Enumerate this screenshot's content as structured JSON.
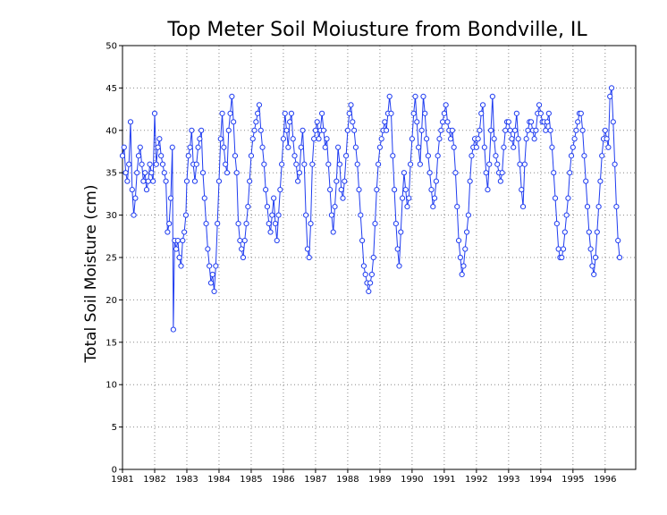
{
  "chart_data": {
    "type": "line",
    "title": "Top Meter Soil Moiusture from Bondville, IL",
    "xlabel": "",
    "ylabel": "Total Soil Moisture (cm)",
    "xlim": [
      1981.0,
      1996.95
    ],
    "ylim": [
      0,
      50
    ],
    "grid": true,
    "x_ticks": [
      "1981",
      "1982",
      "1983",
      "1984",
      "1985",
      "1986",
      "1987",
      "1988",
      "1989",
      "1990",
      "1991",
      "1992",
      "1993",
      "1994",
      "1995",
      "1996"
    ],
    "y_ticks": [
      "0",
      "5",
      "10",
      "15",
      "20",
      "25",
      "30",
      "35",
      "40",
      "45",
      "50"
    ],
    "series": [
      {
        "name": "",
        "color": "#1f3cf0",
        "marker": "open-circle",
        "points": [
          [
            1981.0,
            37
          ],
          [
            1981.05,
            38
          ],
          [
            1981.1,
            35
          ],
          [
            1981.15,
            34
          ],
          [
            1981.2,
            36
          ],
          [
            1981.25,
            41
          ],
          [
            1981.3,
            33
          ],
          [
            1981.35,
            30
          ],
          [
            1981.4,
            32
          ],
          [
            1981.45,
            35
          ],
          [
            1981.5,
            37
          ],
          [
            1981.55,
            38
          ],
          [
            1981.6,
            36
          ],
          [
            1981.65,
            34
          ],
          [
            1981.7,
            35
          ],
          [
            1981.75,
            33
          ],
          [
            1981.8,
            34
          ],
          [
            1981.85,
            36
          ],
          [
            1981.9,
            35
          ],
          [
            1981.95,
            34
          ],
          [
            1982.0,
            42
          ],
          [
            1982.05,
            36
          ],
          [
            1982.1,
            38
          ],
          [
            1982.15,
            39
          ],
          [
            1982.2,
            37
          ],
          [
            1982.25,
            36
          ],
          [
            1982.3,
            35
          ],
          [
            1982.35,
            34
          ],
          [
            1982.4,
            28
          ],
          [
            1982.45,
            29
          ],
          [
            1982.5,
            32
          ],
          [
            1982.55,
            38
          ],
          [
            1982.58,
            16.5
          ],
          [
            1982.62,
            27
          ],
          [
            1982.67,
            26
          ],
          [
            1982.72,
            27
          ],
          [
            1982.77,
            25
          ],
          [
            1982.82,
            24
          ],
          [
            1982.87,
            27
          ],
          [
            1982.92,
            28
          ],
          [
            1982.97,
            30
          ],
          [
            1983.0,
            34
          ],
          [
            1983.05,
            37
          ],
          [
            1983.1,
            38
          ],
          [
            1983.15,
            40
          ],
          [
            1983.2,
            36
          ],
          [
            1983.25,
            34
          ],
          [
            1983.3,
            36
          ],
          [
            1983.35,
            38
          ],
          [
            1983.4,
            39
          ],
          [
            1983.45,
            40
          ],
          [
            1983.5,
            35
          ],
          [
            1983.55,
            32
          ],
          [
            1983.6,
            29
          ],
          [
            1983.65,
            26
          ],
          [
            1983.7,
            24
          ],
          [
            1983.75,
            22
          ],
          [
            1983.8,
            23
          ],
          [
            1983.85,
            21
          ],
          [
            1983.9,
            24
          ],
          [
            1983.95,
            29
          ],
          [
            1984.0,
            34
          ],
          [
            1984.05,
            39
          ],
          [
            1984.1,
            42
          ],
          [
            1984.15,
            38
          ],
          [
            1984.2,
            36
          ],
          [
            1984.25,
            35
          ],
          [
            1984.3,
            40
          ],
          [
            1984.35,
            42
          ],
          [
            1984.4,
            44
          ],
          [
            1984.45,
            41
          ],
          [
            1984.5,
            37
          ],
          [
            1984.55,
            35
          ],
          [
            1984.6,
            29
          ],
          [
            1984.65,
            27
          ],
          [
            1984.7,
            26
          ],
          [
            1984.75,
            25
          ],
          [
            1984.8,
            27
          ],
          [
            1984.85,
            29
          ],
          [
            1984.9,
            31
          ],
          [
            1984.95,
            34
          ],
          [
            1985.0,
            37
          ],
          [
            1985.05,
            39
          ],
          [
            1985.1,
            40
          ],
          [
            1985.15,
            41
          ],
          [
            1985.2,
            42
          ],
          [
            1985.25,
            43
          ],
          [
            1985.3,
            40
          ],
          [
            1985.35,
            38
          ],
          [
            1985.4,
            36
          ],
          [
            1985.45,
            33
          ],
          [
            1985.5,
            31
          ],
          [
            1985.55,
            29
          ],
          [
            1985.6,
            28
          ],
          [
            1985.65,
            30
          ],
          [
            1985.7,
            32
          ],
          [
            1985.75,
            29
          ],
          [
            1985.8,
            27
          ],
          [
            1985.85,
            30
          ],
          [
            1985.9,
            33
          ],
          [
            1985.95,
            36
          ],
          [
            1986.0,
            39
          ],
          [
            1986.05,
            42
          ],
          [
            1986.1,
            40
          ],
          [
            1986.15,
            38
          ],
          [
            1986.2,
            41
          ],
          [
            1986.25,
            42
          ],
          [
            1986.3,
            39
          ],
          [
            1986.35,
            37
          ],
          [
            1986.4,
            36
          ],
          [
            1986.45,
            34
          ],
          [
            1986.5,
            35
          ],
          [
            1986.55,
            38
          ],
          [
            1986.6,
            40
          ],
          [
            1986.65,
            36
          ],
          [
            1986.7,
            30
          ],
          [
            1986.75,
            26
          ],
          [
            1986.8,
            25
          ],
          [
            1986.85,
            29
          ],
          [
            1986.9,
            36
          ],
          [
            1986.95,
            39
          ],
          [
            1987.0,
            40
          ],
          [
            1987.05,
            41
          ],
          [
            1987.1,
            39
          ],
          [
            1987.15,
            40
          ],
          [
            1987.2,
            42
          ],
          [
            1987.25,
            40
          ],
          [
            1987.3,
            38
          ],
          [
            1987.35,
            39
          ],
          [
            1987.4,
            36
          ],
          [
            1987.45,
            33
          ],
          [
            1987.5,
            30
          ],
          [
            1987.55,
            28
          ],
          [
            1987.6,
            31
          ],
          [
            1987.65,
            34
          ],
          [
            1987.7,
            38
          ],
          [
            1987.75,
            36
          ],
          [
            1987.8,
            33
          ],
          [
            1987.85,
            32
          ],
          [
            1987.9,
            34
          ],
          [
            1987.95,
            37
          ],
          [
            1988.0,
            40
          ],
          [
            1988.05,
            42
          ],
          [
            1988.1,
            43
          ],
          [
            1988.15,
            41
          ],
          [
            1988.2,
            40
          ],
          [
            1988.25,
            38
          ],
          [
            1988.3,
            36
          ],
          [
            1988.35,
            33
          ],
          [
            1988.4,
            30
          ],
          [
            1988.45,
            27
          ],
          [
            1988.5,
            24
          ],
          [
            1988.55,
            23
          ],
          [
            1988.6,
            22
          ],
          [
            1988.65,
            21
          ],
          [
            1988.7,
            22
          ],
          [
            1988.75,
            23
          ],
          [
            1988.8,
            25
          ],
          [
            1988.85,
            29
          ],
          [
            1988.9,
            33
          ],
          [
            1988.95,
            36
          ],
          [
            1989.0,
            38
          ],
          [
            1989.05,
            39
          ],
          [
            1989.1,
            40
          ],
          [
            1989.15,
            41
          ],
          [
            1989.2,
            40
          ],
          [
            1989.25,
            42
          ],
          [
            1989.3,
            44
          ],
          [
            1989.35,
            42
          ],
          [
            1989.4,
            37
          ],
          [
            1989.45,
            33
          ],
          [
            1989.5,
            29
          ],
          [
            1989.55,
            26
          ],
          [
            1989.6,
            24
          ],
          [
            1989.65,
            28
          ],
          [
            1989.7,
            32
          ],
          [
            1989.75,
            35
          ],
          [
            1989.8,
            33
          ],
          [
            1989.85,
            31
          ],
          [
            1989.9,
            32
          ],
          [
            1989.95,
            36
          ],
          [
            1990.0,
            39
          ],
          [
            1990.05,
            42
          ],
          [
            1990.1,
            44
          ],
          [
            1990.15,
            41
          ],
          [
            1990.2,
            38
          ],
          [
            1990.25,
            36
          ],
          [
            1990.3,
            40
          ],
          [
            1990.35,
            44
          ],
          [
            1990.4,
            42
          ],
          [
            1990.45,
            39
          ],
          [
            1990.5,
            37
          ],
          [
            1990.55,
            35
          ],
          [
            1990.6,
            33
          ],
          [
            1990.65,
            31
          ],
          [
            1990.7,
            32
          ],
          [
            1990.75,
            34
          ],
          [
            1990.8,
            37
          ],
          [
            1990.85,
            39
          ],
          [
            1990.9,
            40
          ],
          [
            1990.95,
            41
          ],
          [
            1991.0,
            42
          ],
          [
            1991.05,
            43
          ],
          [
            1991.1,
            41
          ],
          [
            1991.15,
            40
          ],
          [
            1991.2,
            39
          ],
          [
            1991.25,
            40
          ],
          [
            1991.3,
            38
          ],
          [
            1991.35,
            35
          ],
          [
            1991.4,
            31
          ],
          [
            1991.45,
            27
          ],
          [
            1991.5,
            25
          ],
          [
            1991.55,
            23
          ],
          [
            1991.6,
            24
          ],
          [
            1991.65,
            26
          ],
          [
            1991.7,
            28
          ],
          [
            1991.75,
            30
          ],
          [
            1991.8,
            34
          ],
          [
            1991.85,
            37
          ],
          [
            1991.9,
            38
          ],
          [
            1991.95,
            39
          ],
          [
            1992.0,
            38
          ],
          [
            1992.05,
            39
          ],
          [
            1992.1,
            40
          ],
          [
            1992.15,
            42
          ],
          [
            1992.2,
            43
          ],
          [
            1992.25,
            38
          ],
          [
            1992.3,
            35
          ],
          [
            1992.35,
            33
          ],
          [
            1992.4,
            36
          ],
          [
            1992.45,
            40
          ],
          [
            1992.5,
            44
          ],
          [
            1992.55,
            39
          ],
          [
            1992.6,
            37
          ],
          [
            1992.65,
            36
          ],
          [
            1992.7,
            35
          ],
          [
            1992.75,
            34
          ],
          [
            1992.8,
            35
          ],
          [
            1992.85,
            38
          ],
          [
            1992.9,
            40
          ],
          [
            1992.95,
            41
          ],
          [
            1993.0,
            41
          ],
          [
            1993.05,
            40
          ],
          [
            1993.1,
            39
          ],
          [
            1993.15,
            38
          ],
          [
            1993.2,
            40
          ],
          [
            1993.25,
            42
          ],
          [
            1993.3,
            39
          ],
          [
            1993.35,
            36
          ],
          [
            1993.4,
            33
          ],
          [
            1993.45,
            31
          ],
          [
            1993.5,
            36
          ],
          [
            1993.55,
            39
          ],
          [
            1993.6,
            40
          ],
          [
            1993.65,
            41
          ],
          [
            1993.7,
            41
          ],
          [
            1993.75,
            40
          ],
          [
            1993.8,
            39
          ],
          [
            1993.85,
            40
          ],
          [
            1993.9,
            42
          ],
          [
            1993.95,
            43
          ],
          [
            1994.0,
            42
          ],
          [
            1994.05,
            41
          ],
          [
            1994.1,
            41
          ],
          [
            1994.15,
            40
          ],
          [
            1994.2,
            41
          ],
          [
            1994.25,
            42
          ],
          [
            1994.3,
            40
          ],
          [
            1994.35,
            38
          ],
          [
            1994.4,
            35
          ],
          [
            1994.45,
            32
          ],
          [
            1994.5,
            29
          ],
          [
            1994.55,
            26
          ],
          [
            1994.6,
            25
          ],
          [
            1994.65,
            25
          ],
          [
            1994.7,
            26
          ],
          [
            1994.75,
            28
          ],
          [
            1994.8,
            30
          ],
          [
            1994.85,
            32
          ],
          [
            1994.9,
            35
          ],
          [
            1994.95,
            37
          ],
          [
            1995.0,
            38
          ],
          [
            1995.05,
            39
          ],
          [
            1995.1,
            40
          ],
          [
            1995.15,
            41
          ],
          [
            1995.2,
            42
          ],
          [
            1995.25,
            42
          ],
          [
            1995.3,
            40
          ],
          [
            1995.35,
            37
          ],
          [
            1995.4,
            34
          ],
          [
            1995.45,
            31
          ],
          [
            1995.5,
            28
          ],
          [
            1995.55,
            26
          ],
          [
            1995.6,
            24
          ],
          [
            1995.65,
            23
          ],
          [
            1995.7,
            25
          ],
          [
            1995.75,
            28
          ],
          [
            1995.8,
            31
          ],
          [
            1995.85,
            34
          ],
          [
            1995.9,
            37
          ],
          [
            1995.95,
            39
          ],
          [
            1996.0,
            40
          ],
          [
            1996.05,
            39
          ],
          [
            1996.1,
            38
          ],
          [
            1996.15,
            44
          ],
          [
            1996.2,
            45
          ],
          [
            1996.25,
            41
          ],
          [
            1996.3,
            36
          ],
          [
            1996.35,
            31
          ],
          [
            1996.4,
            27
          ],
          [
            1996.45,
            25
          ]
        ]
      }
    ]
  }
}
